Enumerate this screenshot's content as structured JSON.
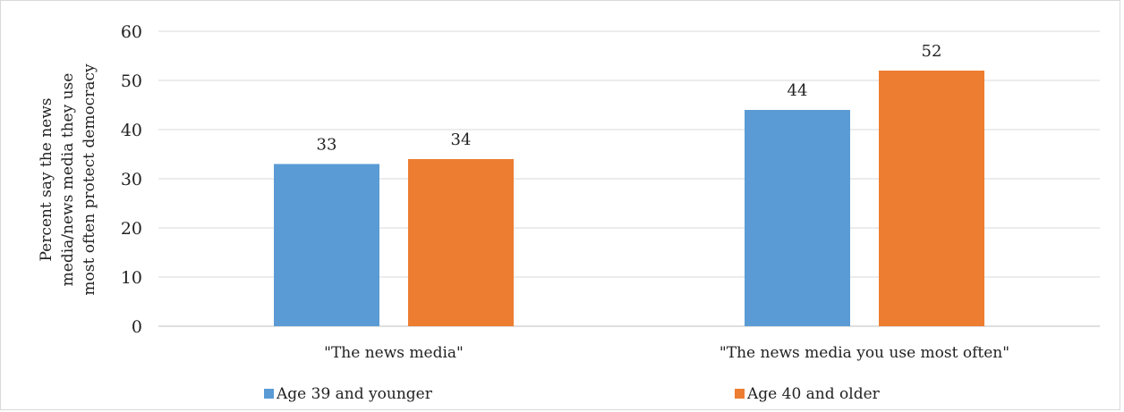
{
  "chart_data": {
    "type": "bar",
    "categories": [
      "\"The news media\"",
      "\"The news media you use most often\""
    ],
    "series": [
      {
        "name": "Age 39 and younger",
        "color": "#5B9BD5",
        "values": [
          33,
          44
        ]
      },
      {
        "name": "Age 40 and older",
        "color": "#ED7D31",
        "values": [
          34,
          52
        ]
      }
    ],
    "ylabel_lines": [
      "Percent say the news",
      "media/news media they use",
      "most often protect democracy"
    ],
    "xlabel": "",
    "ylim": [
      0,
      60
    ],
    "yticks": [
      0,
      10,
      20,
      30,
      40,
      50,
      60
    ],
    "grid": true,
    "legend_position": "bottom",
    "gridline_color": "#d9d9d9",
    "axis_color": "#bfbfbf"
  }
}
